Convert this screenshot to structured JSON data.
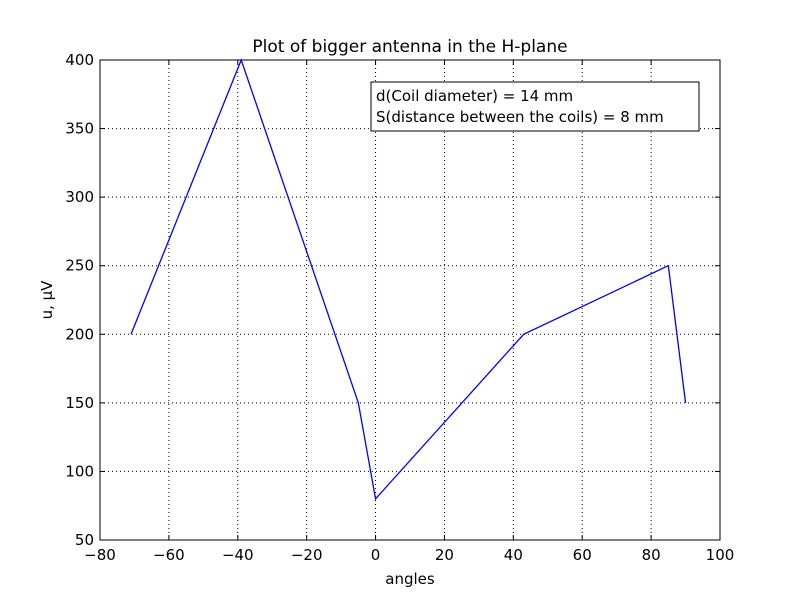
{
  "chart_data": {
    "type": "line",
    "title": "Plot of bigger antenna in the H-plane",
    "xlabel": "angles",
    "ylabel": "u, μV",
    "xlim": [
      -80,
      100
    ],
    "ylim": [
      50,
      400
    ],
    "x_ticks": [
      -80,
      -60,
      -40,
      -20,
      0,
      20,
      40,
      60,
      80,
      100
    ],
    "y_ticks": [
      50,
      100,
      150,
      200,
      250,
      300,
      350,
      400
    ],
    "x_tick_labels": [
      "−80",
      "−60",
      "−40",
      "−20",
      "0",
      "20",
      "40",
      "60",
      "80",
      "100"
    ],
    "y_tick_labels": [
      "50",
      "100",
      "150",
      "200",
      "250",
      "300",
      "350",
      "400"
    ],
    "grid": true,
    "series": [
      {
        "color": "#0000ff",
        "x": [
          -71,
          -39,
          -5,
          0,
          43,
          85,
          90
        ],
        "y": [
          200,
          400,
          150,
          80,
          200,
          250,
          150
        ]
      }
    ],
    "annotation": {
      "lines": [
        "d(Coil diameter) = 14 mm",
        "S(distance between the coils) = 8 mm"
      ],
      "position": "top-right"
    }
  }
}
